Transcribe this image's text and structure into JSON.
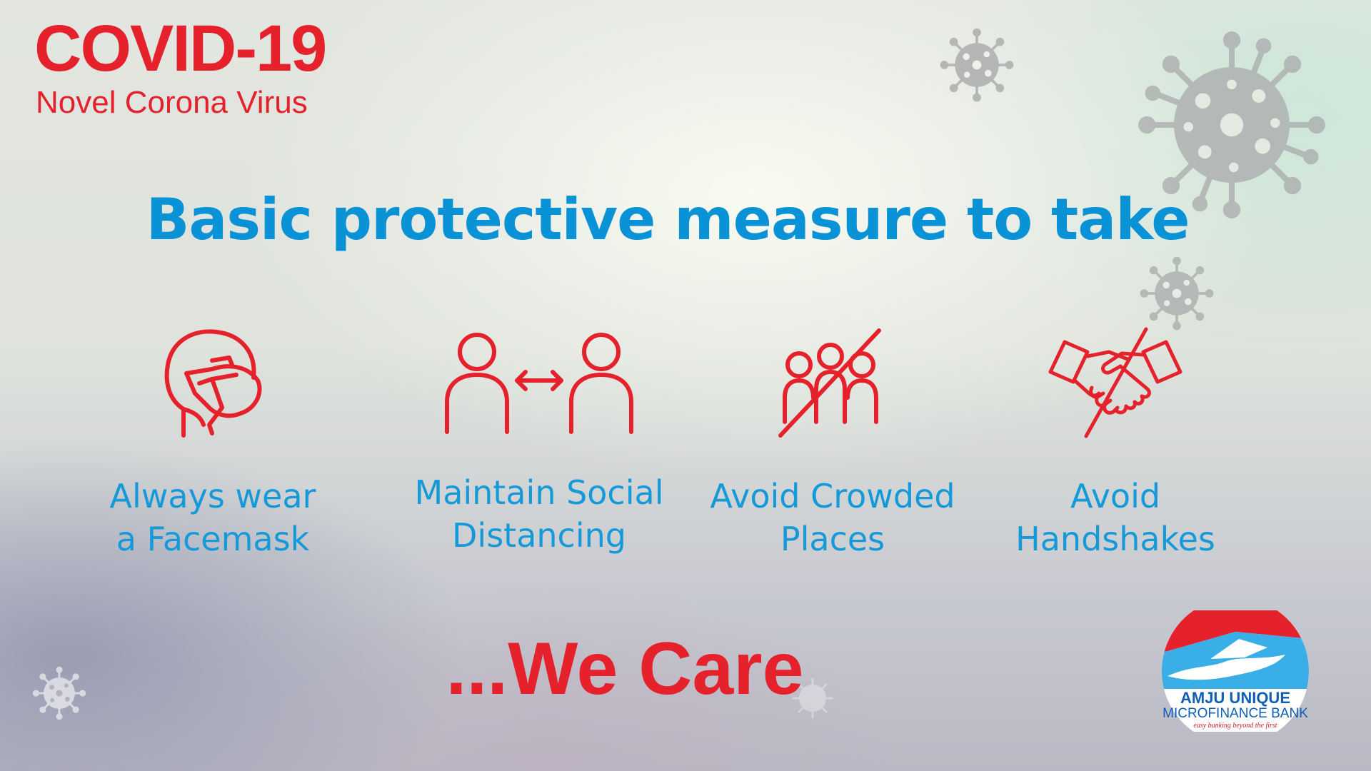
{
  "header": {
    "title": "COVID-19",
    "subtitle": "Novel Corona Virus"
  },
  "headline": "Basic protective measure to take",
  "measures": [
    {
      "icon": "face-mask-icon",
      "line1": "Always wear",
      "line2": "a Facemask"
    },
    {
      "icon": "social-distancing-icon",
      "line1": "Maintain Social",
      "line2": "Distancing"
    },
    {
      "icon": "no-crowds-icon",
      "line1": "Avoid Crowded",
      "line2": "Places"
    },
    {
      "icon": "no-handshake-icon",
      "line1": "Avoid",
      "line2": "Handshakes"
    }
  ],
  "tagline": "...We Care",
  "logo": {
    "name": "AMJU UNIQUE",
    "line2": "MICROFINANCE BANK",
    "slogan": "easy banking beyond the first"
  },
  "colors": {
    "red": "#e5222b",
    "blue": "#0a92d6",
    "virus_gray": "#a8a9ab"
  }
}
